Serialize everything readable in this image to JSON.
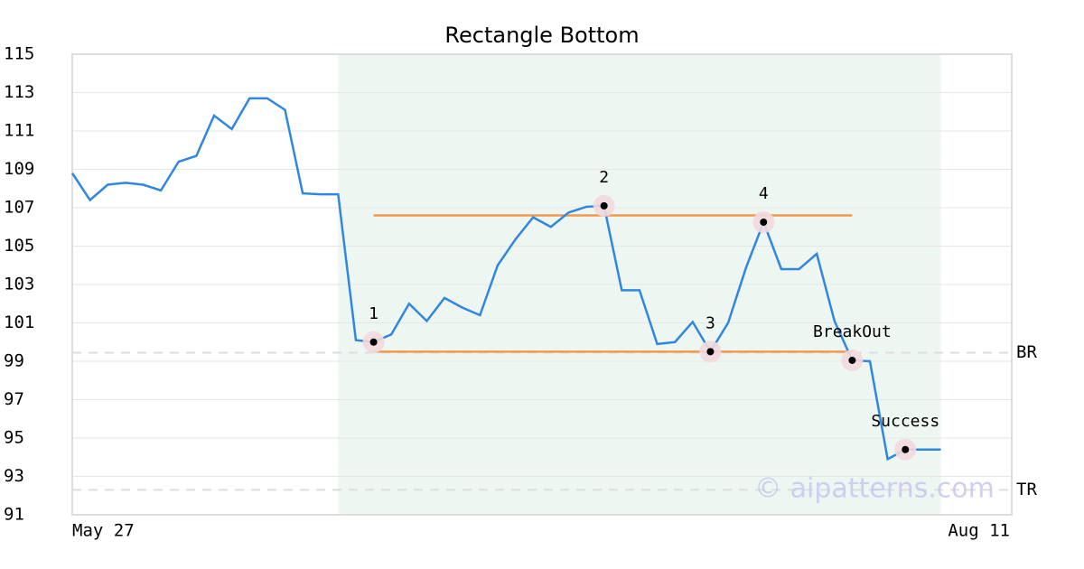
{
  "chart_data": {
    "type": "line",
    "title": "Rectangle Bottom",
    "categories": [
      "May 27",
      null,
      null,
      null,
      null,
      null,
      null,
      null,
      null,
      null,
      null,
      null,
      null,
      null,
      null,
      null,
      null,
      null,
      null,
      null,
      null,
      null,
      null,
      null,
      null,
      null,
      null,
      null,
      null,
      null,
      null,
      null,
      null,
      null,
      null,
      null,
      null,
      null,
      null,
      null,
      null,
      null,
      null,
      null,
      null,
      null,
      null,
      null,
      null,
      null,
      null,
      null,
      null,
      "Aug 11"
    ],
    "values": [
      108.8,
      107.4,
      108.2,
      108.3,
      108.2,
      107.9,
      109.4,
      109.7,
      111.8,
      111.1,
      112.7,
      112.7,
      112.1,
      107.75,
      107.7,
      107.7,
      100.1,
      100.0,
      100.4,
      102.0,
      101.1,
      102.3,
      101.8,
      101.4,
      104.0,
      105.35,
      106.5,
      106.0,
      106.75,
      107.05,
      107.1,
      102.7,
      102.7,
      99.9,
      100.0,
      101.05,
      99.5,
      101.0,
      103.85,
      106.25,
      103.8,
      103.8,
      104.6,
      101.1,
      99.05,
      99.0,
      93.9,
      94.4,
      94.4,
      94.4,
      null,
      null,
      null,
      null
    ],
    "color": "#2f87e0",
    "ylim": [
      91,
      115
    ],
    "yticks": [
      91,
      93,
      95,
      97,
      99,
      101,
      103,
      105,
      107,
      109,
      111,
      113,
      115
    ],
    "grid": true,
    "shaded_range": [
      15,
      49
    ],
    "rectangle_lines": [
      {
        "value": 106.6,
        "from": 17,
        "to": 44,
        "color": "#f39a4a"
      },
      {
        "value": 99.5,
        "from": 17,
        "to": 44,
        "color": "#f39a4a"
      }
    ],
    "levels": [
      {
        "label": "BR",
        "value": 99.45
      },
      {
        "label": "TR",
        "value": 92.3
      }
    ],
    "markers": [
      {
        "label": "1",
        "index": 17
      },
      {
        "label": "2",
        "index": 30
      },
      {
        "label": "3",
        "index": 36
      },
      {
        "label": "4",
        "index": 39
      },
      {
        "label": "BreakOut",
        "index": 44
      },
      {
        "label": "Success",
        "index": 47
      }
    ],
    "watermark": "© aipatterns.com"
  }
}
